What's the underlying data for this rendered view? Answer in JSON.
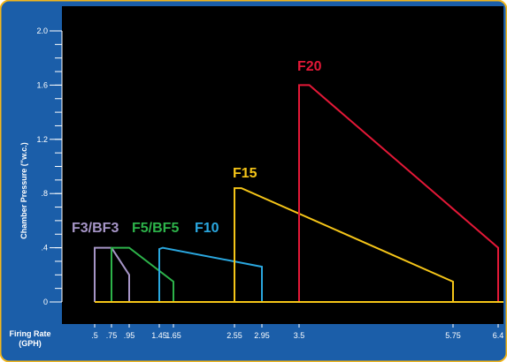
{
  "colors": {
    "frame_border": "#f2b61c",
    "panel_blue": "#1b5ea9",
    "plot_bg": "#000000",
    "text": "#ffffff",
    "baseline": "#f5c518"
  },
  "chart_data": {
    "type": "area",
    "ylabel": "Chamber Pressure (\"w.c.)",
    "xlabel_line1": "Firing Rate",
    "xlabel_line2": "(GPH)",
    "ylim": [
      0,
      2.0
    ],
    "y_ticks": [
      {
        "value": 0,
        "label": "0"
      },
      {
        "value": 0.4,
        "label": ".4"
      },
      {
        "value": 0.8,
        "label": ".8"
      },
      {
        "value": 1.2,
        "label": "1.2"
      },
      {
        "value": 1.6,
        "label": "1.6"
      },
      {
        "value": 2.0,
        "label": "2.0"
      }
    ],
    "x_ticks": [
      {
        "value": 0.5,
        "label": ".5"
      },
      {
        "value": 0.75,
        "label": ".75"
      },
      {
        "value": 0.95,
        "label": ".95"
      },
      {
        "value": 1.45,
        "label": "1.45"
      },
      {
        "value": 1.65,
        "label": "1.65"
      },
      {
        "value": 2.55,
        "label": "2.55"
      },
      {
        "value": 2.95,
        "label": "2.95"
      },
      {
        "value": 3.5,
        "label": "3.5"
      },
      {
        "value": 5.75,
        "label": "5.75"
      },
      {
        "value": 6.4,
        "label": "6.4"
      }
    ],
    "series": [
      {
        "name": "F3/BF3",
        "color": "#a695c7",
        "points": [
          [
            0.5,
            0
          ],
          [
            0.5,
            0.4
          ],
          [
            0.75,
            0.4
          ],
          [
            0.95,
            0.2
          ],
          [
            0.95,
            0
          ],
          [
            0.5,
            0
          ]
        ]
      },
      {
        "name": "F5/BF5",
        "color": "#2db34a",
        "points": [
          [
            0.75,
            0
          ],
          [
            0.75,
            0.4
          ],
          [
            0.95,
            0.4
          ],
          [
            1.65,
            0.15
          ],
          [
            1.65,
            0
          ],
          [
            0.75,
            0
          ]
        ]
      },
      {
        "name": "F10",
        "color": "#2aa7df",
        "points": [
          [
            1.45,
            0
          ],
          [
            1.45,
            0.39
          ],
          [
            1.5,
            0.4
          ],
          [
            2.95,
            0.26
          ],
          [
            2.95,
            0
          ],
          [
            1.45,
            0
          ]
        ]
      },
      {
        "name": "F15",
        "color": "#f5c518",
        "points": [
          [
            2.55,
            0
          ],
          [
            2.55,
            0.84
          ],
          [
            2.65,
            0.84
          ],
          [
            5.75,
            0.15
          ],
          [
            5.75,
            0
          ],
          [
            2.55,
            0
          ]
        ]
      },
      {
        "name": "F20",
        "color": "#e31837",
        "points": [
          [
            3.5,
            0
          ],
          [
            3.5,
            1.6
          ],
          [
            3.65,
            1.6
          ],
          [
            6.4,
            0.4
          ],
          [
            6.4,
            0
          ],
          [
            3.5,
            0
          ]
        ]
      }
    ]
  }
}
